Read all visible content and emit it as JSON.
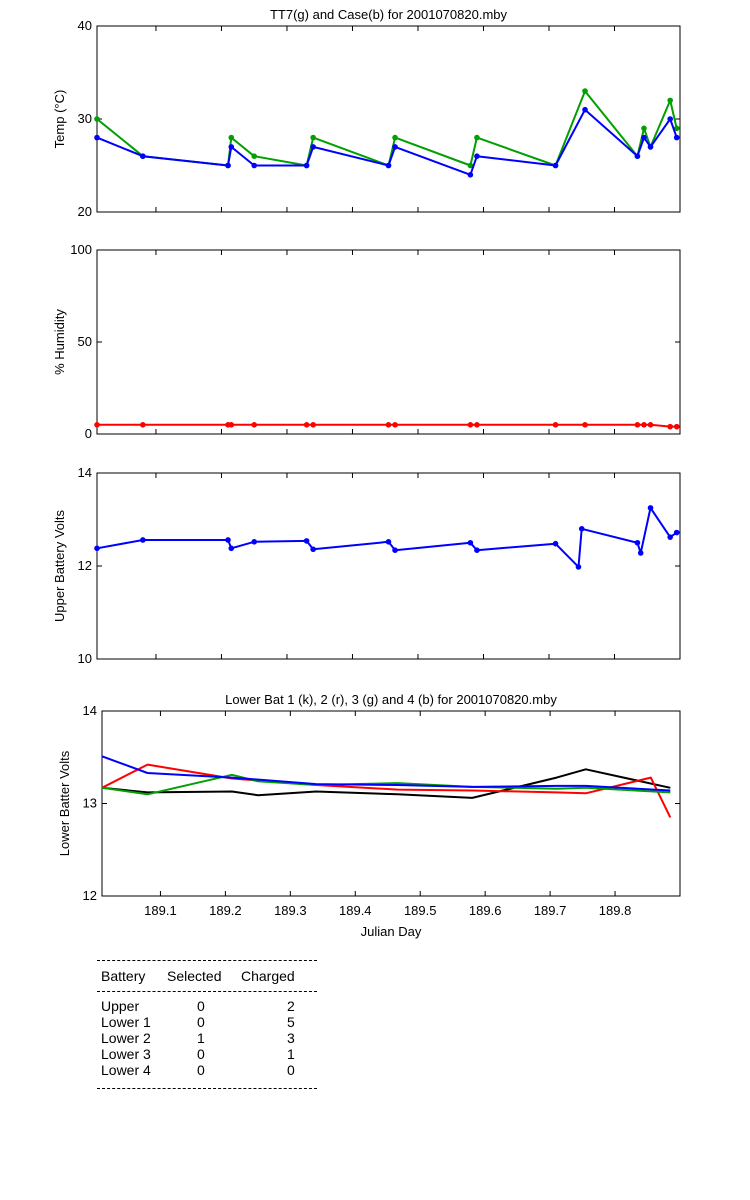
{
  "chart_data": [
    {
      "type": "line",
      "title": "TT7(g) and Case(b) for 2001070820.mby",
      "xlabel": "",
      "ylabel": "Temp  (°C)",
      "xlim": [
        189.01,
        189.9
      ],
      "ylim": [
        20,
        40
      ],
      "yticks": [
        "20",
        "30",
        "40"
      ],
      "grid": false,
      "series": [
        {
          "name": "TT7",
          "color": "#00a000",
          "marker": true,
          "x": [
            189.01,
            189.08,
            189.21,
            189.215,
            189.25,
            189.33,
            189.34,
            189.455,
            189.465,
            189.58,
            189.59,
            189.71,
            189.755,
            189.835,
            189.845,
            189.855,
            189.885,
            189.895
          ],
          "y": [
            30,
            26,
            25,
            28,
            26,
            25,
            28,
            25,
            28,
            25,
            28,
            25,
            33,
            26,
            29,
            27,
            32,
            29
          ]
        },
        {
          "name": "Case",
          "color": "#0000ff",
          "marker": true,
          "x": [
            189.01,
            189.08,
            189.21,
            189.215,
            189.25,
            189.33,
            189.34,
            189.455,
            189.465,
            189.58,
            189.59,
            189.71,
            189.755,
            189.835,
            189.845,
            189.855,
            189.885,
            189.895
          ],
          "y": [
            28,
            26,
            25,
            27,
            25,
            25,
            27,
            25,
            27,
            24,
            26,
            25,
            31,
            26,
            28,
            27,
            30,
            28
          ]
        }
      ]
    },
    {
      "type": "line",
      "title": "",
      "xlabel": "",
      "ylabel": "% Humidity",
      "xlim": [
        189.01,
        189.9
      ],
      "ylim": [
        0,
        100
      ],
      "yticks": [
        "0",
        "50",
        "100"
      ],
      "grid": false,
      "series": [
        {
          "name": "",
          "color": "#ff0000",
          "marker": true,
          "x": [
            189.01,
            189.08,
            189.21,
            189.215,
            189.25,
            189.33,
            189.34,
            189.455,
            189.465,
            189.58,
            189.59,
            189.71,
            189.755,
            189.835,
            189.845,
            189.855,
            189.885,
            189.895
          ],
          "y": [
            5,
            5,
            5,
            5,
            5,
            5,
            5,
            5,
            5,
            5,
            5,
            5,
            5,
            5,
            5,
            5,
            4,
            4
          ]
        }
      ]
    },
    {
      "type": "line",
      "title": "",
      "xlabel": "",
      "ylabel": "Upper Battery Volts",
      "xlim": [
        189.01,
        189.9
      ],
      "ylim": [
        10,
        14
      ],
      "yticks": [
        "10",
        "12",
        "14"
      ],
      "grid": false,
      "series": [
        {
          "name": "",
          "color": "#0000ff",
          "marker": true,
          "x": [
            189.01,
            189.08,
            189.21,
            189.215,
            189.25,
            189.33,
            189.34,
            189.455,
            189.465,
            189.58,
            189.59,
            189.71,
            189.745,
            189.75,
            189.835,
            189.84,
            189.855,
            189.885,
            189.895
          ],
          "y": [
            12.38,
            12.56,
            12.56,
            12.38,
            12.52,
            12.54,
            12.36,
            12.52,
            12.34,
            12.5,
            12.34,
            12.48,
            11.98,
            12.8,
            12.5,
            12.28,
            13.25,
            12.62,
            12.72
          ]
        }
      ]
    },
    {
      "type": "line",
      "title": "Lower Bat 1 (k), 2 (r), 3 (g) and 4 (b) for 2001070820.mby",
      "xlabel": "Julian Day",
      "ylabel": "Lower Batter Volts",
      "xlim": [
        189.01,
        189.9
      ],
      "ylim": [
        12,
        14
      ],
      "yticks": [
        "12",
        "13",
        "14"
      ],
      "xticks": [
        "189.1",
        "189.2",
        "189.3",
        "189.4",
        "189.5",
        "189.6",
        "189.7",
        "189.8"
      ],
      "grid": false,
      "series": [
        {
          "name": "1",
          "color": "#000000",
          "marker": false,
          "x": [
            189.01,
            189.08,
            189.21,
            189.25,
            189.34,
            189.465,
            189.58,
            189.71,
            189.755,
            189.885
          ],
          "y": [
            13.17,
            13.12,
            13.13,
            13.09,
            13.13,
            13.1,
            13.06,
            13.28,
            13.37,
            13.17
          ]
        },
        {
          "name": "2",
          "color": "#ff0000",
          "marker": false,
          "x": [
            189.01,
            189.08,
            189.21,
            189.34,
            189.465,
            189.58,
            189.71,
            189.755,
            189.855,
            189.885
          ],
          "y": [
            13.17,
            13.42,
            13.27,
            13.2,
            13.15,
            13.14,
            13.12,
            13.11,
            13.28,
            12.85
          ]
        },
        {
          "name": "3",
          "color": "#00a000",
          "marker": false,
          "x": [
            189.01,
            189.08,
            189.21,
            189.25,
            189.34,
            189.465,
            189.58,
            189.71,
            189.755,
            189.885
          ],
          "y": [
            13.17,
            13.1,
            13.31,
            13.24,
            13.2,
            13.22,
            13.18,
            13.16,
            13.17,
            13.12
          ]
        },
        {
          "name": "4",
          "color": "#0000ff",
          "marker": false,
          "x": [
            189.01,
            189.08,
            189.21,
            189.34,
            189.465,
            189.58,
            189.71,
            189.755,
            189.885
          ],
          "y": [
            13.51,
            13.33,
            13.28,
            13.21,
            13.2,
            13.18,
            13.19,
            13.19,
            13.14
          ]
        }
      ]
    }
  ],
  "battery_table": {
    "headers": [
      "Battery",
      "Selected",
      "Charged"
    ],
    "rows": [
      [
        "Upper",
        "0",
        "2"
      ],
      [
        "Lower 1",
        "0",
        "5"
      ],
      [
        "Lower 2",
        "1",
        "3"
      ],
      [
        "Lower 3",
        "0",
        "1"
      ],
      [
        "Lower 4",
        "0",
        "0"
      ]
    ]
  }
}
